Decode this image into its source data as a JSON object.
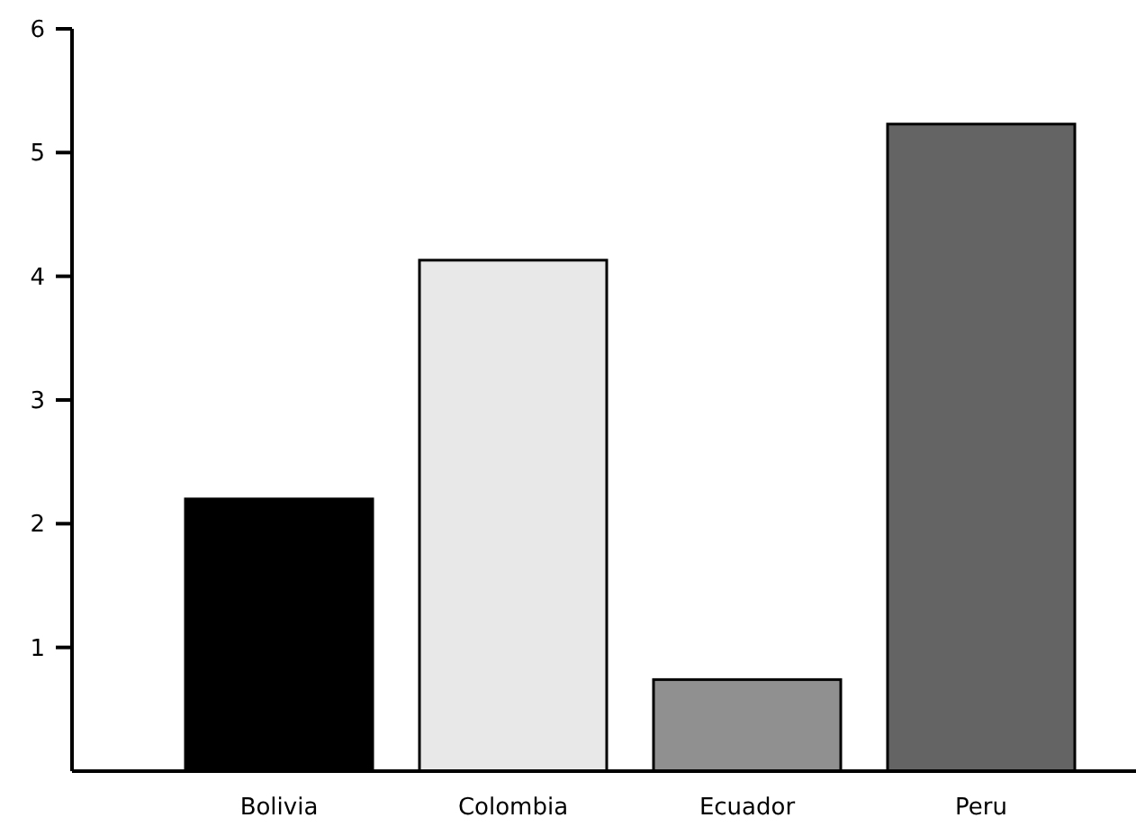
{
  "chart_data": {
    "type": "bar",
    "categories": [
      "Bolivia",
      "Colombia",
      "Ecuador",
      "Peru"
    ],
    "values": [
      2.2,
      4.13,
      0.74,
      5.23
    ],
    "colors": [
      "#000000",
      "#e8e8e8",
      "#909090",
      "#646464"
    ],
    "ylim": [
      0,
      6
    ],
    "yticks": [
      1,
      2,
      3,
      4,
      5,
      6
    ],
    "grid": false
  }
}
